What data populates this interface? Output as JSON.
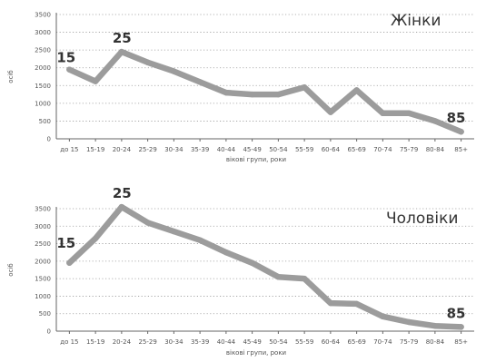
{
  "chart_data": [
    {
      "type": "line",
      "title": "Жінки",
      "xlabel": "вікові групи, роки",
      "ylabel": "осіб",
      "categories": [
        "до 15",
        "15-19",
        "20-24",
        "25-29",
        "30-34",
        "35-39",
        "40-44",
        "45-49",
        "50-54",
        "55-59",
        "60-64",
        "65-69",
        "70-74",
        "75-79",
        "80-84",
        "85+"
      ],
      "ylim": [
        0,
        3500
      ],
      "yticks": [
        0,
        500,
        1000,
        1500,
        2000,
        2500,
        3000,
        3500
      ],
      "grid": true,
      "series": [
        {
          "values": [
            1950,
            1620,
            2450,
            2150,
            1900,
            1600,
            1300,
            1250,
            1250,
            1450,
            750,
            1370,
            720,
            720,
            500,
            200
          ],
          "color": "#9c9c9c"
        }
      ],
      "annotations": [
        {
          "text": "15",
          "category": "до 15"
        },
        {
          "text": "25",
          "category": "20-24"
        },
        {
          "text": "85",
          "category": "85+"
        }
      ]
    },
    {
      "type": "line",
      "title": "Чоловіки",
      "xlabel": "вікові групи, роки",
      "ylabel": "осіб",
      "categories": [
        "до 15",
        "15-19",
        "20-24",
        "25-29",
        "30-34",
        "35-39",
        "40-44",
        "45-49",
        "50-54",
        "55-59",
        "60-64",
        "65-69",
        "70-74",
        "75-79",
        "80-84",
        "85+"
      ],
      "ylim": [
        0,
        3500
      ],
      "yticks": [
        0,
        500,
        1000,
        1500,
        2000,
        2500,
        3000,
        3500
      ],
      "grid": true,
      "series": [
        {
          "values": [
            1950,
            2650,
            3550,
            3100,
            2850,
            2600,
            2250,
            1950,
            1550,
            1500,
            800,
            780,
            420,
            260,
            150,
            120
          ],
          "color": "#9c9c9c"
        }
      ],
      "annotations": [
        {
          "text": "15",
          "category": "до 15"
        },
        {
          "text": "25",
          "category": "20-24"
        },
        {
          "text": "85",
          "category": "85+"
        }
      ]
    }
  ]
}
